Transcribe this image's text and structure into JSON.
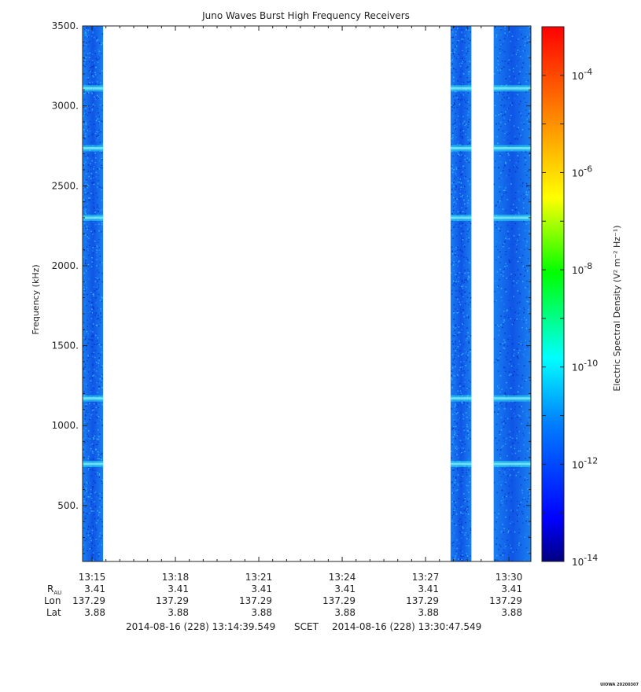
{
  "chart_data": {
    "type": "heatmap",
    "title": "Juno Waves Burst High Frequency Receivers",
    "ylabel": "Frequency (kHz)",
    "y_ticks": [
      "3500.",
      "3000.",
      "2500.",
      "2000.",
      "1500.",
      "1000.",
      "500."
    ],
    "y_tick_values": [
      3500,
      3000,
      2500,
      2000,
      1500,
      1000,
      500
    ],
    "ylim": [
      150,
      3500
    ],
    "x_ticks": [
      "13:15",
      "13:18",
      "13:21",
      "13:24",
      "13:27",
      "13:30"
    ],
    "x_tick_minutes": [
      15,
      18,
      21,
      24,
      27,
      30
    ],
    "xlim_minutes": [
      14.66,
      30.79
    ],
    "data_intervals_minutes": [
      [
        14.66,
        15.4
      ],
      [
        27.9,
        28.65
      ],
      [
        29.45,
        30.79
      ]
    ],
    "bright_band_frequencies_khz": [
      3110,
      2735,
      2300,
      1170,
      760
    ],
    "colorbar": {
      "label": "Electric Spectral Density (V² m⁻² Hz⁻¹)",
      "scale": "log",
      "range_exponents": [
        -14,
        -3
      ],
      "tick_base": "10",
      "tick_exponents": [
        "-4",
        "-6",
        "-8",
        "-10",
        "-12",
        "-14"
      ],
      "colors": [
        "#000080",
        "#0000ff",
        "#0080ff",
        "#00ffff",
        "#00ff00",
        "#ffff00",
        "#ff8000",
        "#ff0000"
      ]
    },
    "ephemeris": {
      "labels": {
        "r_main": "R",
        "r_sub": "AU",
        "lon": "Lon",
        "lat": "Lat"
      },
      "r_au": [
        "3.41",
        "3.41",
        "3.41",
        "3.41",
        "3.41",
        "3.41"
      ],
      "lon": [
        "137.29",
        "137.29",
        "137.29",
        "137.29",
        "137.29",
        "137.29"
      ],
      "lat": [
        "3.88",
        "3.88",
        "3.88",
        "3.88",
        "3.88",
        "3.88"
      ]
    },
    "time_range": {
      "start": "2014-08-16 (228) 13:14:39.549",
      "label": "SCET",
      "end": "2014-08-16 (228) 13:30:47.549"
    },
    "footer": "UIOWA 20200307"
  }
}
